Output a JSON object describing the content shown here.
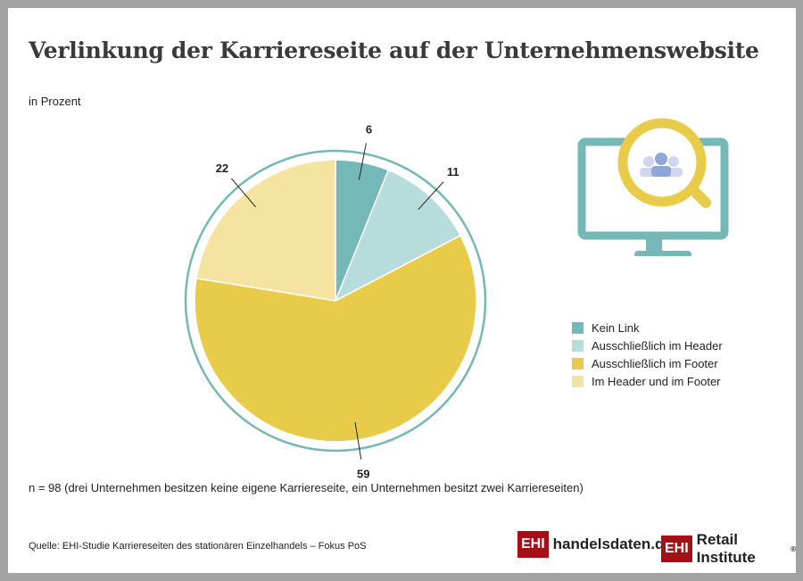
{
  "title": "Verlinkung der Karriereseite auf der Unternehmenswebsite",
  "subtitle": "in Prozent",
  "note": "n = 98 (drei Unternehmen besitzen keine eigene Karriereseite, ein Unternehmen besitzt zwei Karriereseiten)",
  "source": "Quelle: EHI-Studie Karriereseiten des stationären Einzelhandels –  Fokus PoS",
  "logos": {
    "ehi": "EHI",
    "handelsdaten": "handelsdaten.de",
    "retail": "Retail Institute",
    "reg": "®"
  },
  "chart_data": {
    "type": "pie",
    "title": "Verlinkung der Karriereseite auf der Unternehmenswebsite",
    "unit": "in Prozent",
    "categories": [
      "Kein Link",
      "Ausschließlich im Header",
      "Ausschließlich im Footer",
      "Im Header und im Footer"
    ],
    "values": [
      6,
      11,
      59,
      22
    ],
    "colors": [
      "#74b8b7",
      "#b7dcdc",
      "#e9cb4a",
      "#f4e3a1"
    ],
    "legend_position": "right"
  },
  "colors": {
    "ring": "#74b8b7",
    "brand": "#a50f16"
  }
}
